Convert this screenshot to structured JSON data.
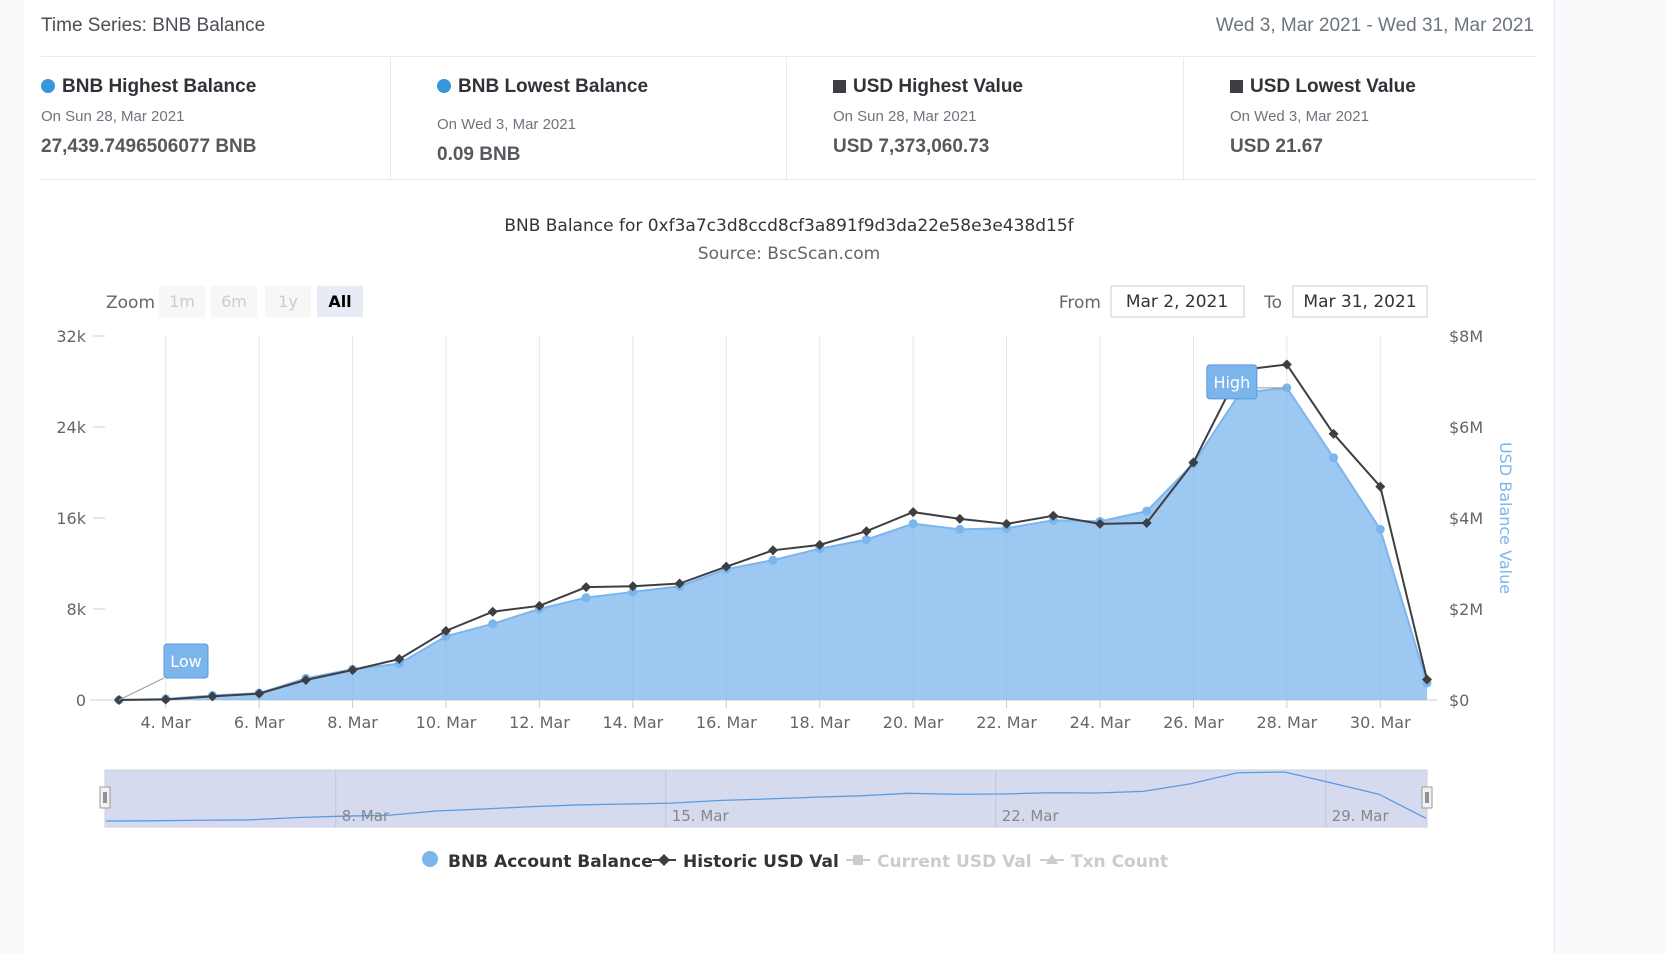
{
  "header": {
    "title": "Time Series: BNB Balance",
    "date_range": "Wed 3, Mar 2021 - Wed 31, Mar 2021"
  },
  "stats": [
    {
      "title": "BNB Highest Balance",
      "marker": "circle",
      "color": "#3498db",
      "date": "On Sun 28, Mar 2021",
      "value": "27,439.7496506077 BNB"
    },
    {
      "title": "BNB Lowest Balance",
      "marker": "circle",
      "color": "#3498db",
      "date": "On Wed 3, Mar 2021",
      "value": "0.09 BNB"
    },
    {
      "title": "USD Highest Value",
      "marker": "square",
      "color": "#3d3f42",
      "date": "On Sun 28, Mar 2021",
      "value": "USD 7,373,060.73"
    },
    {
      "title": "USD Lowest Value",
      "marker": "square",
      "color": "#3d3f42",
      "date": "On Wed 3, Mar 2021",
      "value": "USD 21.67"
    }
  ],
  "controls": {
    "zoom_label": "Zoom",
    "zoom_buttons": [
      {
        "label": "1m",
        "active": false
      },
      {
        "label": "6m",
        "active": false
      },
      {
        "label": "1y",
        "active": false
      },
      {
        "label": "All",
        "active": true
      }
    ],
    "from_label": "From",
    "from_value": "Mar 2, 2021",
    "to_label": "To",
    "to_value": "Mar 31, 2021"
  },
  "chart_data": {
    "type": "area",
    "title": "BNB Balance for 0xf3a7c3d8ccd8cf3a891f9d3da22e58e3e438d15f",
    "subtitle": "Source: BscScan.com",
    "x": [
      "3. Mar",
      "4. Mar",
      "5. Mar",
      "6. Mar",
      "7. Mar",
      "8. Mar",
      "9. Mar",
      "10. Mar",
      "11. Mar",
      "12. Mar",
      "13. Mar",
      "14. Mar",
      "15. Mar",
      "16. Mar",
      "17. Mar",
      "18. Mar",
      "19. Mar",
      "20. Mar",
      "21. Mar",
      "22. Mar",
      "23. Mar",
      "24. Mar",
      "25. Mar",
      "26. Mar",
      "27. Mar",
      "28. Mar",
      "29. Mar",
      "30. Mar",
      "31. Mar"
    ],
    "x_tick_labels": [
      "4. Mar",
      "6. Mar",
      "8. Mar",
      "10. Mar",
      "12. Mar",
      "14. Mar",
      "16. Mar",
      "18. Mar",
      "20. Mar",
      "22. Mar",
      "24. Mar",
      "26. Mar",
      "28. Mar",
      "30. Mar"
    ],
    "y_left": {
      "ticks": [
        "0",
        "8k",
        "16k",
        "24k",
        "32k"
      ],
      "range": [
        0,
        32000
      ]
    },
    "y_right": {
      "label": "USD Balance Value",
      "ticks": [
        "$0",
        "$2M",
        "$4M",
        "$6M",
        "$8M"
      ],
      "range": [
        0,
        8000000
      ]
    },
    "series": [
      {
        "name": "BNB Account Balance",
        "axis": "left",
        "style": "area",
        "color": "#7cb5ec",
        "values": [
          0.09,
          100,
          400,
          600,
          1900,
          2700,
          3200,
          5600,
          6700,
          8000,
          9000,
          9500,
          10000,
          11500,
          12300,
          13300,
          14100,
          15500,
          15000,
          15100,
          15800,
          15700,
          16600,
          20800,
          27000,
          27440,
          21300,
          15000,
          1500
        ]
      },
      {
        "name": "Historic USD Val",
        "axis": "right",
        "style": "line",
        "color": "#3d3f42",
        "values": [
          21.67,
          10000,
          80000,
          140000,
          440000,
          660000,
          900000,
          1520000,
          1940000,
          2070000,
          2480000,
          2500000,
          2560000,
          2930000,
          3290000,
          3410000,
          3710000,
          4130000,
          3980000,
          3870000,
          4050000,
          3870000,
          3890000,
          5220000,
          7250000,
          7373060.73,
          5850000,
          4690000,
          450000
        ]
      }
    ],
    "annotations": [
      {
        "text": "High",
        "series": "BNB Account Balance",
        "x": "28. Mar"
      },
      {
        "text": "Low",
        "series": "BNB Account Balance",
        "x": "3. Mar"
      }
    ],
    "navigator": {
      "tick_labels": [
        "8. Mar",
        "15. Mar",
        "22. Mar",
        "29. Mar"
      ]
    },
    "legend": {
      "placement": "bottom-center",
      "items": [
        {
          "label": "BNB Account Balance",
          "active": true,
          "color": "#7cb5ec"
        },
        {
          "label": "Historic USD Val",
          "active": true,
          "color": "#3d3f42"
        },
        {
          "label": "Current USD Val",
          "active": false,
          "color": "#cccccc"
        },
        {
          "label": "Txn Count",
          "active": false,
          "color": "#cccccc"
        }
      ]
    }
  }
}
